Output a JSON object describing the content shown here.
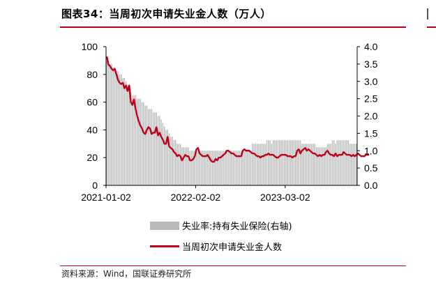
{
  "header": {
    "title": "图表34：当周初次申请失业金人数（万人）"
  },
  "footer": {
    "source": "资料来源：Wind，国联证券研究所"
  },
  "legend": {
    "bar_label": "失业率:持有失业保险(右轴)",
    "line_label": "当周初次申请失业金人数"
  },
  "colors": {
    "bar": "#b9b9b9",
    "line": "#c0001a",
    "accent": "#c0001a"
  },
  "chart_data": {
    "type": "bar",
    "title": "",
    "xlabel": "",
    "ylabel": "",
    "x_tick_labels": [
      "2021-01-02",
      "2022-02-02",
      "2023-03-02"
    ],
    "x_tick_indices": [
      0,
      56,
      112
    ],
    "y_left": {
      "lim": [
        0,
        100
      ],
      "ticks": [
        "0",
        "20",
        "40",
        "60",
        "80",
        "100"
      ]
    },
    "y_right": {
      "lim": [
        0,
        4.0
      ],
      "ticks": [
        "0.0",
        "0.5",
        "1.0",
        "1.5",
        "2.0",
        "2.5",
        "3.0",
        "3.5",
        "4.0"
      ]
    },
    "series": [
      {
        "name": "失业率:持有失业保险(右轴)",
        "type": "bar",
        "axis": "right",
        "values": [
          3.6,
          3.6,
          3.5,
          3.5,
          3.4,
          3.4,
          3.3,
          3.3,
          3.2,
          3.2,
          3.1,
          3.1,
          3.0,
          2.9,
          2.8,
          2.7,
          2.6,
          2.6,
          2.6,
          2.5,
          2.5,
          2.5,
          2.4,
          2.4,
          2.3,
          2.3,
          2.2,
          2.2,
          2.2,
          2.1,
          2.1,
          2.1,
          2.0,
          2.0,
          1.9,
          1.8,
          1.7,
          1.6,
          1.6,
          1.5,
          1.4,
          1.4,
          1.3,
          1.3,
          1.2,
          1.2,
          1.2,
          1.1,
          1.1,
          1.1,
          1.1,
          1.1,
          1.0,
          1.0,
          1.0,
          1.0,
          1.0,
          1.0,
          1.0,
          1.0,
          1.0,
          1.0,
          1.0,
          1.0,
          1.0,
          1.0,
          1.0,
          1.0,
          1.0,
          1.0,
          1.0,
          1.0,
          1.0,
          1.0,
          1.0,
          1.0,
          1.0,
          1.0,
          1.0,
          1.0,
          1.0,
          1.0,
          1.0,
          1.0,
          1.0,
          1.0,
          1.0,
          1.0,
          1.0,
          1.0,
          1.0,
          1.2,
          1.2,
          1.2,
          1.2,
          1.2,
          1.2,
          1.2,
          1.2,
          1.2,
          1.3,
          1.3,
          1.3,
          1.2,
          1.3,
          1.3,
          1.3,
          1.3,
          1.3,
          1.3,
          1.3,
          1.3,
          1.3,
          1.3,
          1.3,
          1.3,
          1.3,
          1.3,
          1.3,
          1.3,
          1.3,
          1.3,
          1.2,
          1.2,
          1.2,
          1.2,
          1.2,
          1.2,
          1.2,
          1.2,
          1.2,
          1.1,
          1.1,
          1.1,
          1.1,
          1.1,
          1.1,
          1.1,
          1.2,
          1.2,
          1.2,
          1.3,
          1.3,
          1.2,
          1.3,
          1.3,
          1.3,
          1.3,
          1.3,
          1.3,
          1.3,
          1.3,
          1.2,
          1.2,
          1.2,
          1.2,
          1.2
        ]
      },
      {
        "name": "当周初次申请失业金人数",
        "type": "line",
        "axis": "left",
        "values": [
          93,
          87,
          86,
          84,
          83,
          84,
          80,
          76,
          74,
          73,
          74,
          70,
          72,
          68,
          72,
          60,
          58,
          62,
          55,
          50,
          46,
          43,
          41,
          38,
          37,
          40,
          42,
          41,
          37,
          38,
          38,
          42,
          36,
          38,
          35,
          33,
          30,
          30,
          35,
          28,
          27,
          26,
          24,
          23,
          21,
          22,
          21,
          18,
          20,
          22,
          21,
          21,
          18,
          18,
          19,
          21,
          26,
          27,
          23,
          22,
          21,
          21,
          21,
          22,
          20,
          18,
          17,
          17,
          19,
          18,
          20,
          20,
          21,
          22,
          23,
          25,
          25,
          24,
          23,
          23,
          22,
          21,
          21,
          21,
          21,
          25,
          26,
          25,
          25,
          25,
          24,
          23,
          23,
          22,
          21,
          21,
          20,
          21,
          21,
          22,
          22,
          23,
          22,
          22,
          22,
          21,
          20,
          20,
          21,
          22,
          22,
          22,
          22,
          21,
          21,
          21,
          20,
          21,
          21,
          25,
          26,
          23,
          25,
          26,
          27,
          25,
          26,
          25,
          24,
          23,
          23,
          22,
          21,
          22,
          21,
          22,
          22,
          24,
          25,
          23,
          22,
          22,
          21,
          23,
          21,
          22,
          22,
          22,
          24,
          23,
          22,
          22,
          22,
          21,
          22,
          21,
          22,
          23,
          22,
          21,
          21,
          21,
          22,
          22,
          22
        ]
      }
    ]
  }
}
